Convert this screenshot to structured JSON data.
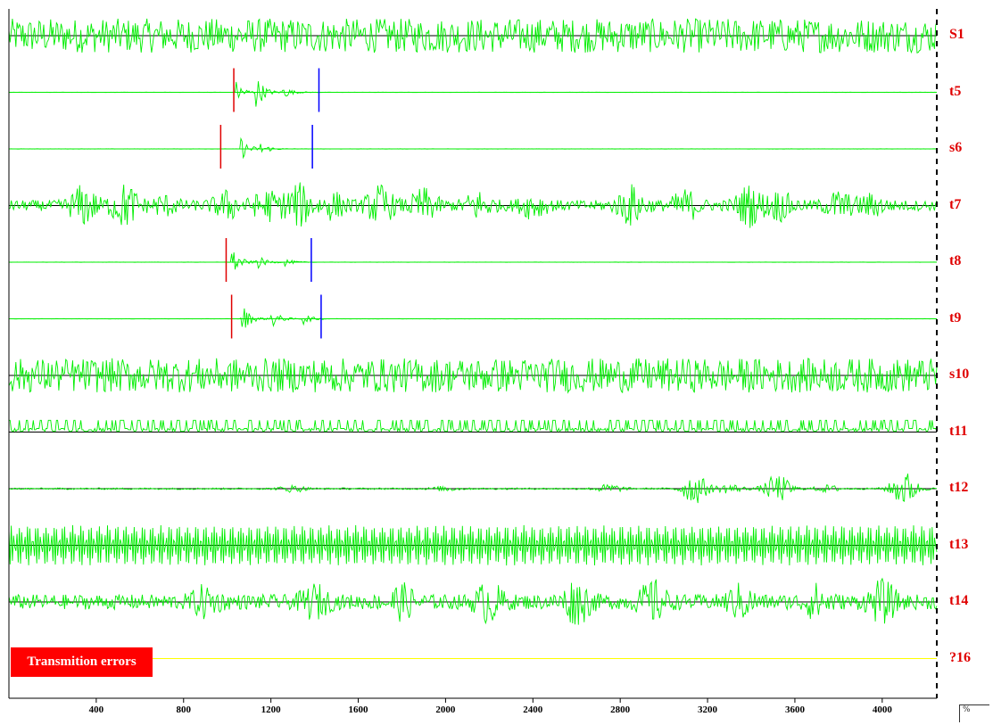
{
  "chart_data": {
    "type": "line",
    "title": "",
    "xlabel": "",
    "ylabel": "",
    "xlim": [
      0,
      4250
    ],
    "x_ticks": [
      "400",
      "800",
      "1200",
      "1600",
      "2000",
      "2400",
      "2800",
      "3200",
      "3600",
      "4000"
    ],
    "grid": false,
    "colors": {
      "trace": "#00ee00",
      "label": "#e00000",
      "pick_p": "#e00000",
      "pick_s": "#0000ff",
      "error_line": "#ffff00",
      "error_badge": "#ff0000"
    },
    "channels": [
      {
        "label": "S1",
        "kind": "noise",
        "amp": 0.8,
        "period": 16,
        "baseline": "black",
        "events": []
      },
      {
        "label": "t5",
        "kind": "event",
        "amp": 0.0,
        "baseline": "green",
        "p_pick": 1030,
        "s_pick": 1420,
        "events": [
          {
            "t": 1040,
            "amp": 0.85,
            "dur": 420,
            "bursts": [
              [
                1040,
                0.55
              ],
              [
                1130,
                0.85
              ],
              [
                1250,
                0.35
              ]
            ]
          }
        ]
      },
      {
        "label": "s6",
        "kind": "event",
        "amp": 0.0,
        "baseline": "green",
        "p_pick": 970,
        "s_pick": 1390,
        "events": [
          {
            "t": 1060,
            "amp": 0.6,
            "dur": 380,
            "bursts": [
              [
                1060,
                0.6
              ],
              [
                1150,
                0.3
              ]
            ]
          }
        ]
      },
      {
        "label": "t7",
        "kind": "burst",
        "amp": 0.25,
        "period": 18,
        "baseline": "black",
        "events": [
          [
            340,
            0.8
          ],
          [
            530,
            0.95
          ],
          [
            710,
            0.35
          ],
          [
            1000,
            0.55
          ],
          [
            1180,
            0.6
          ],
          [
            1320,
            0.95
          ],
          [
            1480,
            0.5
          ],
          [
            1700,
            0.8
          ],
          [
            1900,
            0.65
          ],
          [
            2150,
            0.55
          ],
          [
            2400,
            0.45
          ],
          [
            2850,
            0.8
          ],
          [
            3100,
            0.6
          ],
          [
            3390,
            0.8
          ],
          [
            3530,
            0.55
          ],
          [
            3800,
            0.55
          ],
          [
            3950,
            0.4
          ]
        ]
      },
      {
        "label": "t8",
        "kind": "event",
        "amp": 0.0,
        "baseline": "green",
        "p_pick": 995,
        "s_pick": 1385,
        "events": [
          {
            "t": 1020,
            "amp": 0.7,
            "dur": 440,
            "bursts": [
              [
                1020,
                0.7
              ],
              [
                1130,
                0.4
              ],
              [
                1260,
                0.2
              ]
            ]
          }
        ]
      },
      {
        "label": "t9",
        "kind": "event",
        "amp": 0.0,
        "baseline": "green",
        "p_pick": 1020,
        "s_pick": 1430,
        "events": [
          {
            "t": 1040,
            "amp": 0.9,
            "dur": 420,
            "bursts": [
              [
                1060,
                0.9
              ],
              [
                1200,
                0.5
              ],
              [
                1340,
                0.35
              ]
            ]
          }
        ]
      },
      {
        "label": "s10",
        "kind": "noise",
        "amp": 0.8,
        "period": 14,
        "baseline": "black",
        "events": []
      },
      {
        "label": "t11",
        "kind": "square",
        "amp": 0.55,
        "period": 20,
        "baseline": "black",
        "events": []
      },
      {
        "label": "t12",
        "kind": "burst",
        "amp": 0.04,
        "period": 14,
        "baseline": "black",
        "events": [
          [
            1300,
            0.15
          ],
          [
            2000,
            0.1
          ],
          [
            2750,
            0.2
          ],
          [
            3140,
            0.7
          ],
          [
            3300,
            0.2
          ],
          [
            3520,
            0.65
          ],
          [
            3750,
            0.15
          ],
          [
            4100,
            0.8
          ]
        ]
      },
      {
        "label": "t13",
        "kind": "periodic",
        "amp": 0.95,
        "period": 14,
        "baseline": "black",
        "events": []
      },
      {
        "label": "t14",
        "kind": "burst",
        "amp": 0.35,
        "period": 16,
        "baseline": "black",
        "events": [
          [
            900,
            0.55
          ],
          [
            1400,
            0.6
          ],
          [
            1800,
            0.6
          ],
          [
            2200,
            0.75
          ],
          [
            2600,
            0.9
          ],
          [
            2950,
            0.8
          ],
          [
            3350,
            0.6
          ],
          [
            3700,
            0.6
          ],
          [
            4000,
            0.8
          ]
        ]
      },
      {
        "label": "?16",
        "kind": "flat",
        "amp": 0.0,
        "baseline": "yellow",
        "events": []
      }
    ],
    "annotation": "Transmition errors"
  },
  "corner": {
    "glyph": "%"
  }
}
